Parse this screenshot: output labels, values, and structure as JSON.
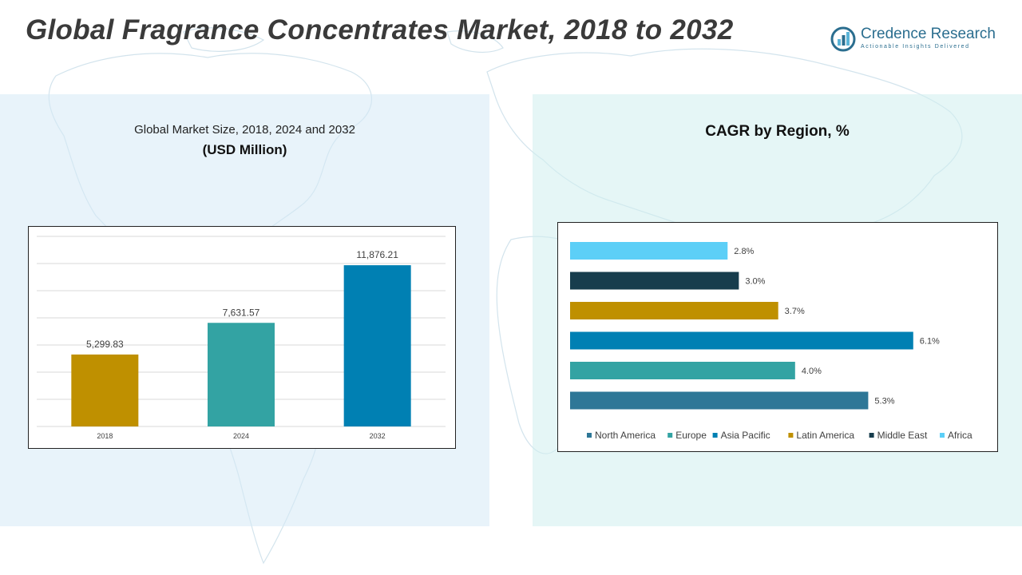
{
  "title": "Global Fragrance Concentrates Market, 2018 to 2032",
  "logo": {
    "name": "Credence Research",
    "tagline": "Actionable Insights Delivered"
  },
  "left_panel": {
    "subtitle_line1": "Global Market Size, 2018, 2024 and 2032",
    "subtitle_line2": "(USD Million)"
  },
  "right_panel": {
    "title": "CAGR by Region, %"
  },
  "chart_data": [
    {
      "type": "bar",
      "categories": [
        "2018",
        "2024",
        "2032"
      ],
      "values": [
        5299.83,
        7631.57,
        11876.21
      ],
      "value_labels": [
        "5,299.83",
        "7,631.57",
        "11,876.21"
      ],
      "colors": [
        "#bf9000",
        "#33a3a3",
        "#0080b3"
      ],
      "ylim": [
        0,
        14000
      ],
      "grid": true
    },
    {
      "type": "bar",
      "orientation": "horizontal",
      "categories": [
        "North America",
        "Europe",
        "Asia Pacific",
        "Latin America",
        "Middle East",
        "Africa"
      ],
      "values": [
        5.3,
        4.0,
        6.1,
        3.7,
        3.0,
        2.8
      ],
      "value_labels": [
        "5.3%",
        "4.0%",
        "6.1%",
        "3.7%",
        "3.0%",
        "2.8%"
      ],
      "colors": [
        "#2e7797",
        "#33a3a3",
        "#0080b3",
        "#bf9000",
        "#173d4d",
        "#5ccff7"
      ],
      "xlim": [
        0,
        6.6
      ],
      "legend_position": "bottom",
      "grid": false
    }
  ]
}
